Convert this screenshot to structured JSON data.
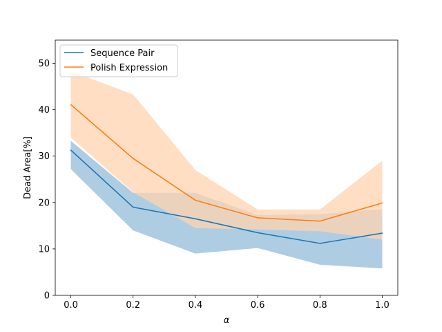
{
  "chart_data": {
    "type": "line",
    "title": "",
    "xlabel": "α",
    "ylabel": "Dead Area[%]",
    "xlim": [
      -0.05,
      1.05
    ],
    "ylim": [
      0,
      55
    ],
    "x": [
      0.0,
      0.2,
      0.4,
      0.6,
      0.8,
      1.0
    ],
    "xticks": [
      "0.0",
      "0.2",
      "0.4",
      "0.6",
      "0.8",
      "1.0"
    ],
    "yticks": [
      "0",
      "10",
      "20",
      "30",
      "40",
      "50"
    ],
    "grid": false,
    "legend_position": "upper-left",
    "series": [
      {
        "name": "Sequence Pair",
        "color": "#1f77b4",
        "band_color": "#aecde3",
        "values": [
          31.3,
          19.0,
          16.5,
          13.5,
          11.2,
          13.4
        ],
        "lower": [
          27.2,
          14.0,
          9.0,
          10.2,
          6.6,
          5.8
        ],
        "upper": [
          33.3,
          22.1,
          22.1,
          17.3,
          17.5,
          18.6
        ]
      },
      {
        "name": "Polish Expression",
        "color": "#ff7f0e",
        "band_color": "#ffd3b0",
        "values": [
          41.1,
          29.5,
          20.5,
          16.7,
          16.0,
          19.9
        ],
        "lower": [
          34.0,
          22.2,
          14.5,
          14.2,
          13.8,
          12.0
        ],
        "upper": [
          48.3,
          43.3,
          27.0,
          18.5,
          18.5,
          29.0
        ]
      }
    ]
  }
}
